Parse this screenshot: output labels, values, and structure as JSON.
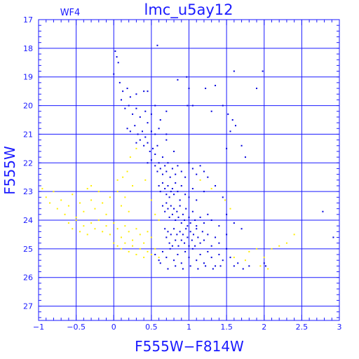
{
  "chart_data": {
    "type": "scatter",
    "title": "lmc_u5ay12",
    "annotation": "WF4",
    "xlabel": "F555W−F814W",
    "ylabel": "F555W",
    "xlim": [
      -1,
      3
    ],
    "ylim": [
      27.5,
      17
    ],
    "y_inverted": true,
    "grid": true,
    "x_ticks": [
      -1,
      -0.5,
      0,
      0.5,
      1,
      1.5,
      2,
      2.5,
      3
    ],
    "x_tick_labels": [
      "−1",
      "−0.5",
      "0",
      "0.5",
      "1",
      "1.5",
      "2",
      "2.5",
      "3"
    ],
    "y_ticks": [
      17,
      18,
      19,
      20,
      21,
      22,
      23,
      24,
      25,
      26,
      27
    ],
    "y_tick_labels": [
      "17",
      "18",
      "19",
      "20",
      "21",
      "22",
      "23",
      "24",
      "25",
      "26",
      "27"
    ],
    "colors": {
      "frame": "#1a1aff",
      "blue_points": "#0000dd",
      "yellow_points": "#ffee00"
    },
    "series": [
      {
        "color": "#0000dd",
        "points": [
          [
            0.02,
            18.1
          ],
          [
            0.04,
            18.3
          ],
          [
            0.06,
            18.5
          ],
          [
            0.0,
            18.9
          ],
          [
            0.58,
            17.9
          ],
          [
            0.97,
            19.0
          ],
          [
            1.6,
            18.8
          ],
          [
            1.98,
            18.8
          ],
          [
            0.08,
            19.2
          ],
          [
            0.12,
            19.5
          ],
          [
            0.1,
            19.8
          ],
          [
            0.18,
            19.4
          ],
          [
            0.22,
            19.7
          ],
          [
            0.3,
            19.6
          ],
          [
            0.4,
            19.5
          ],
          [
            0.45,
            19.5
          ],
          [
            0.85,
            19.1
          ],
          [
            1.0,
            19.4
          ],
          [
            1.22,
            19.4
          ],
          [
            1.35,
            19.3
          ],
          [
            1.9,
            19.4
          ],
          [
            0.15,
            20.1
          ],
          [
            0.2,
            20.0
          ],
          [
            0.25,
            20.3
          ],
          [
            0.3,
            20.1
          ],
          [
            0.35,
            20.4
          ],
          [
            0.42,
            20.2
          ],
          [
            0.5,
            20.3
          ],
          [
            0.55,
            20.0
          ],
          [
            0.62,
            20.5
          ],
          [
            0.7,
            20.2
          ],
          [
            0.98,
            20.0
          ],
          [
            1.05,
            20.0
          ],
          [
            1.3,
            20.2
          ],
          [
            1.45,
            20.0
          ],
          [
            1.52,
            20.3
          ],
          [
            1.58,
            20.5
          ],
          [
            0.18,
            20.8
          ],
          [
            0.22,
            20.9
          ],
          [
            0.28,
            20.7
          ],
          [
            0.32,
            21.0
          ],
          [
            0.38,
            20.9
          ],
          [
            0.42,
            21.1
          ],
          [
            0.45,
            20.6
          ],
          [
            0.5,
            20.9
          ],
          [
            0.55,
            21.0
          ],
          [
            0.6,
            20.8
          ],
          [
            0.7,
            21.0
          ],
          [
            1.55,
            20.9
          ],
          [
            1.62,
            20.7
          ],
          [
            0.3,
            21.3
          ],
          [
            0.35,
            21.2
          ],
          [
            0.4,
            21.4
          ],
          [
            0.45,
            21.3
          ],
          [
            0.48,
            21.6
          ],
          [
            0.52,
            21.5
          ],
          [
            0.55,
            21.7
          ],
          [
            0.58,
            21.4
          ],
          [
            0.65,
            21.8
          ],
          [
            0.7,
            21.2
          ],
          [
            0.8,
            21.6
          ],
          [
            1.5,
            21.5
          ],
          [
            1.7,
            21.4
          ],
          [
            1.75,
            21.8
          ],
          [
            0.45,
            22.0
          ],
          [
            0.5,
            21.9
          ],
          [
            0.55,
            22.1
          ],
          [
            0.58,
            22.3
          ],
          [
            0.6,
            22.0
          ],
          [
            0.62,
            22.2
          ],
          [
            0.65,
            22.4
          ],
          [
            0.68,
            22.1
          ],
          [
            0.7,
            22.3
          ],
          [
            0.72,
            22.0
          ],
          [
            0.75,
            22.5
          ],
          [
            0.78,
            22.2
          ],
          [
            0.82,
            22.4
          ],
          [
            0.85,
            22.1
          ],
          [
            0.9,
            22.3
          ],
          [
            0.95,
            22.5
          ],
          [
            1.0,
            22.0
          ],
          [
            1.05,
            22.2
          ],
          [
            1.1,
            22.4
          ],
          [
            1.15,
            22.1
          ],
          [
            1.2,
            22.3
          ],
          [
            1.25,
            22.5
          ],
          [
            0.6,
            22.8
          ],
          [
            0.62,
            23.0
          ],
          [
            0.65,
            22.7
          ],
          [
            0.68,
            22.9
          ],
          [
            0.7,
            23.1
          ],
          [
            0.72,
            22.8
          ],
          [
            0.74,
            23.2
          ],
          [
            0.76,
            23.0
          ],
          [
            0.78,
            22.9
          ],
          [
            0.8,
            23.1
          ],
          [
            0.82,
            22.7
          ],
          [
            0.85,
            23.0
          ],
          [
            0.88,
            23.3
          ],
          [
            0.9,
            22.8
          ],
          [
            0.95,
            23.1
          ],
          [
            1.0,
            23.2
          ],
          [
            1.05,
            22.9
          ],
          [
            1.1,
            23.3
          ],
          [
            1.2,
            23.0
          ],
          [
            1.35,
            22.8
          ],
          [
            1.45,
            23.2
          ],
          [
            0.65,
            23.5
          ],
          [
            0.68,
            23.7
          ],
          [
            0.7,
            23.4
          ],
          [
            0.72,
            23.6
          ],
          [
            0.74,
            23.9
          ],
          [
            0.76,
            23.5
          ],
          [
            0.78,
            23.8
          ],
          [
            0.8,
            23.6
          ],
          [
            0.82,
            24.0
          ],
          [
            0.84,
            23.7
          ],
          [
            0.86,
            23.9
          ],
          [
            0.88,
            23.5
          ],
          [
            0.9,
            24.1
          ],
          [
            0.92,
            23.8
          ],
          [
            0.94,
            24.0
          ],
          [
            0.96,
            23.6
          ],
          [
            0.98,
            24.2
          ],
          [
            1.0,
            23.9
          ],
          [
            1.02,
            24.1
          ],
          [
            1.05,
            23.7
          ],
          [
            1.08,
            24.0
          ],
          [
            1.1,
            24.2
          ],
          [
            1.15,
            23.9
          ],
          [
            1.2,
            24.1
          ],
          [
            1.25,
            23.8
          ],
          [
            1.3,
            24.0
          ],
          [
            1.4,
            24.2
          ],
          [
            1.5,
            23.8
          ],
          [
            1.6,
            24.1
          ],
          [
            1.7,
            24.3
          ],
          [
            2.78,
            23.7
          ],
          [
            0.68,
            24.3
          ],
          [
            0.7,
            24.6
          ],
          [
            0.72,
            24.4
          ],
          [
            0.74,
            24.8
          ],
          [
            0.76,
            24.5
          ],
          [
            0.78,
            24.9
          ],
          [
            0.8,
            24.3
          ],
          [
            0.82,
            24.7
          ],
          [
            0.84,
            24.5
          ],
          [
            0.86,
            24.9
          ],
          [
            0.88,
            24.4
          ],
          [
            0.9,
            24.7
          ],
          [
            0.92,
            24.5
          ],
          [
            0.94,
            24.8
          ],
          [
            0.96,
            24.3
          ],
          [
            0.98,
            24.6
          ],
          [
            1.0,
            24.9
          ],
          [
            1.02,
            24.4
          ],
          [
            1.04,
            24.7
          ],
          [
            1.06,
            24.5
          ],
          [
            1.08,
            24.9
          ],
          [
            1.1,
            24.3
          ],
          [
            1.12,
            24.6
          ],
          [
            1.15,
            24.8
          ],
          [
            1.18,
            24.4
          ],
          [
            1.2,
            24.7
          ],
          [
            1.25,
            24.5
          ],
          [
            1.3,
            24.9
          ],
          [
            1.35,
            24.6
          ],
          [
            1.4,
            24.8
          ],
          [
            1.5,
            24.5
          ],
          [
            2.92,
            24.6
          ],
          [
            0.65,
            25.1
          ],
          [
            0.7,
            25.3
          ],
          [
            0.75,
            25.0
          ],
          [
            0.8,
            25.4
          ],
          [
            0.85,
            25.2
          ],
          [
            0.9,
            25.5
          ],
          [
            0.95,
            25.1
          ],
          [
            1.0,
            25.3
          ],
          [
            1.05,
            25.0
          ],
          [
            1.1,
            25.4
          ],
          [
            1.15,
            25.2
          ],
          [
            1.2,
            25.5
          ],
          [
            1.25,
            25.1
          ],
          [
            1.3,
            25.3
          ],
          [
            1.35,
            25.6
          ],
          [
            1.4,
            25.2
          ],
          [
            1.45,
            25.4
          ],
          [
            1.5,
            25.0
          ],
          [
            1.55,
            25.3
          ],
          [
            1.6,
            25.6
          ],
          [
            1.65,
            25.5
          ],
          [
            1.72,
            25.7
          ],
          [
            1.8,
            25.6
          ],
          [
            2.0,
            25.5
          ],
          [
            2.02,
            25.6
          ],
          [
            0.55,
            25.2
          ],
          [
            0.6,
            25.4
          ],
          [
            0.62,
            25.5
          ],
          [
            0.72,
            25.7
          ],
          [
            0.82,
            25.6
          ],
          [
            0.92,
            25.7
          ],
          [
            1.02,
            25.6
          ],
          [
            1.12,
            25.7
          ],
          [
            1.22,
            25.6
          ],
          [
            1.32,
            25.7
          ],
          [
            1.42,
            25.6
          ]
        ]
      },
      {
        "color": "#ffee00",
        "points": [
          [
            -0.95,
            22.9
          ],
          [
            -0.9,
            23.2
          ],
          [
            -0.85,
            23.4
          ],
          [
            -0.8,
            23.0
          ],
          [
            -0.75,
            23.6
          ],
          [
            -0.7,
            23.3
          ],
          [
            -0.65,
            23.8
          ],
          [
            -0.6,
            23.5
          ],
          [
            -0.55,
            23.1
          ],
          [
            -0.5,
            23.9
          ],
          [
            -0.45,
            23.4
          ],
          [
            -0.4,
            23.7
          ],
          [
            -0.35,
            22.9
          ],
          [
            -0.3,
            23.3
          ],
          [
            -0.25,
            23.6
          ],
          [
            -0.2,
            23.0
          ],
          [
            -0.15,
            23.4
          ],
          [
            -0.1,
            23.8
          ],
          [
            -0.05,
            23.2
          ],
          [
            0.05,
            23.0
          ],
          [
            0.1,
            23.5
          ],
          [
            0.15,
            23.2
          ],
          [
            0.2,
            23.7
          ],
          [
            0.25,
            22.8
          ],
          [
            -0.6,
            24.1
          ],
          [
            -0.55,
            24.3
          ],
          [
            -0.5,
            24.0
          ],
          [
            -0.45,
            24.4
          ],
          [
            -0.4,
            24.2
          ],
          [
            -0.35,
            24.5
          ],
          [
            -0.3,
            24.1
          ],
          [
            -0.25,
            24.3
          ],
          [
            -0.2,
            24.0
          ],
          [
            -0.15,
            24.4
          ],
          [
            -0.1,
            24.2
          ],
          [
            -0.05,
            24.5
          ],
          [
            0.0,
            24.1
          ],
          [
            0.05,
            24.3
          ],
          [
            0.1,
            24.6
          ],
          [
            0.15,
            24.2
          ],
          [
            0.2,
            24.4
          ],
          [
            0.25,
            24.7
          ],
          [
            0.3,
            24.3
          ],
          [
            0.35,
            24.5
          ],
          [
            0.4,
            24.8
          ],
          [
            0.45,
            24.4
          ],
          [
            0.5,
            24.6
          ],
          [
            0.0,
            24.8
          ],
          [
            0.05,
            24.9
          ],
          [
            0.1,
            25.0
          ],
          [
            0.15,
            24.8
          ],
          [
            0.2,
            25.1
          ],
          [
            0.25,
            24.9
          ],
          [
            0.3,
            25.2
          ],
          [
            0.35,
            25.0
          ],
          [
            0.4,
            25.3
          ],
          [
            0.45,
            25.1
          ],
          [
            0.5,
            25.2
          ],
          [
            0.55,
            25.0
          ],
          [
            0.6,
            25.3
          ],
          [
            -0.3,
            22.8
          ],
          [
            0.05,
            22.6
          ],
          [
            0.12,
            22.5
          ],
          [
            0.18,
            22.3
          ],
          [
            0.22,
            21.8
          ],
          [
            0.3,
            21.5
          ],
          [
            0.42,
            22.6
          ],
          [
            0.5,
            23.3
          ],
          [
            0.55,
            23.8
          ],
          [
            0.6,
            24.0
          ],
          [
            1.15,
            22.6
          ],
          [
            1.3,
            22.9
          ],
          [
            1.48,
            23.3
          ],
          [
            1.55,
            23.6
          ],
          [
            1.6,
            25.3
          ],
          [
            1.8,
            25.1
          ],
          [
            1.9,
            25.0
          ],
          [
            2.0,
            25.3
          ],
          [
            2.1,
            25.0
          ],
          [
            2.2,
            24.9
          ],
          [
            2.3,
            24.8
          ],
          [
            2.4,
            24.5
          ],
          [
            1.75,
            25.4
          ],
          [
            1.95,
            25.6
          ],
          [
            2.05,
            25.7
          ]
        ]
      }
    ]
  }
}
